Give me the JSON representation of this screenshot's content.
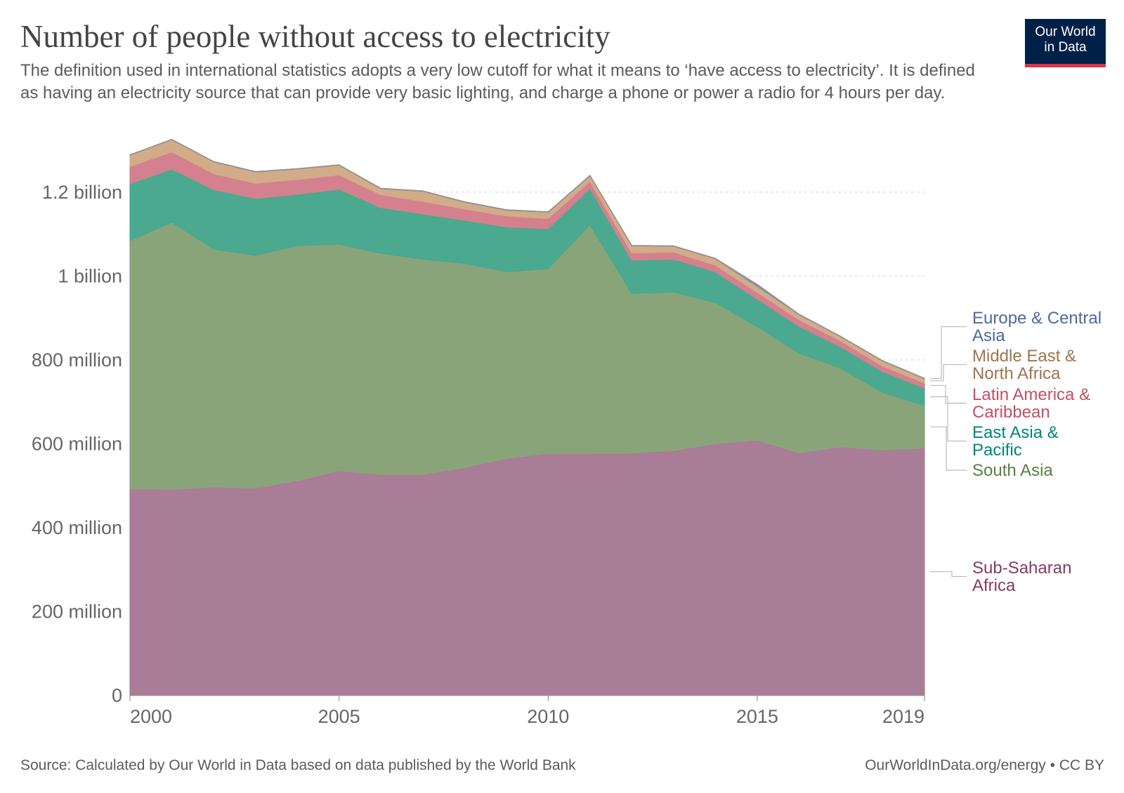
{
  "title": "Number of people without access to electricity",
  "subtitle": "The definition used in international statistics adopts a very low cutoff for what it means to ‘have access to electricity’. It is defined as having an electricity source that can provide very basic lighting, and charge a phone or power a radio for 4 hours per day.",
  "logo": {
    "line1": "Our World",
    "line2": "in Data"
  },
  "footer": {
    "source": "Source: Calculated by Our World in Data based on data published by the World Bank",
    "license": "OurWorldInData.org/energy • CC BY"
  },
  "chart_data": {
    "type": "area",
    "stacked": true,
    "x": [
      2000,
      2001,
      2002,
      2003,
      2004,
      2005,
      2006,
      2007,
      2008,
      2009,
      2010,
      2011,
      2012,
      2013,
      2014,
      2015,
      2016,
      2017,
      2018,
      2019
    ],
    "xticks": [
      "2000",
      "2005",
      "2010",
      "2015",
      "2019"
    ],
    "ylim": [
      0,
      1300000000
    ],
    "yticks": [
      {
        "value": 0,
        "label": "0"
      },
      {
        "value": 200000000,
        "label": "200 million"
      },
      {
        "value": 400000000,
        "label": "400 million"
      },
      {
        "value": 600000000,
        "label": "600 million"
      },
      {
        "value": 800000000,
        "label": "800 million"
      },
      {
        "value": 1000000000,
        "label": "1 billion"
      },
      {
        "value": 1200000000,
        "label": "1.2 billion"
      }
    ],
    "grid": true,
    "series": [
      {
        "name": "Sub-Saharan Africa",
        "fill": "#a97c98",
        "label_color": "#883960",
        "values": [
          492000000,
          491000000,
          497000000,
          494000000,
          512000000,
          536000000,
          527000000,
          527000000,
          543000000,
          565000000,
          577000000,
          577000000,
          578000000,
          584000000,
          600000000,
          609000000,
          578000000,
          593000000,
          585000000,
          590000000
        ]
      },
      {
        "name": "South Asia",
        "fill": "#8aa47a",
        "label_color": "#578145",
        "values": [
          592000000,
          637000000,
          567000000,
          555000000,
          560000000,
          540000000,
          527000000,
          513000000,
          487000000,
          445000000,
          440000000,
          545000000,
          380000000,
          378000000,
          336000000,
          270000000,
          238000000,
          187000000,
          137000000,
          101000000
        ]
      },
      {
        "name": "East Asia & Pacific",
        "fill": "#4aa98f",
        "label_color": "#00847e",
        "values": [
          136000000,
          127000000,
          142000000,
          136000000,
          123000000,
          131000000,
          109000000,
          108000000,
          103000000,
          107000000,
          96000000,
          87000000,
          80000000,
          78000000,
          74000000,
          66000000,
          64000000,
          51000000,
          50000000,
          42000000
        ]
      },
      {
        "name": "Latin America & Caribbean",
        "fill": "#d4808e",
        "label_color": "#c15065",
        "values": [
          41000000,
          41000000,
          38000000,
          36000000,
          35000000,
          34000000,
          31000000,
          30000000,
          27000000,
          26000000,
          24000000,
          17000000,
          17000000,
          17000000,
          16000000,
          16000000,
          16000000,
          14000000,
          13000000,
          12000000
        ]
      },
      {
        "name": "Middle East & North Africa",
        "fill": "#d2ac88",
        "label_color": "#a2734d",
        "values": [
          27000000,
          29000000,
          28000000,
          27000000,
          25000000,
          23000000,
          14000000,
          24000000,
          16000000,
          14000000,
          15000000,
          13000000,
          17000000,
          14000000,
          15000000,
          14000000,
          12000000,
          10000000,
          12000000,
          10000000
        ]
      },
      {
        "name": "Europe & Central Asia",
        "fill": "#7b93bf",
        "label_color": "#4c6a9c",
        "values": [
          1000000,
          1000000,
          1000000,
          1000000,
          1000000,
          1000000,
          1000000,
          1000000,
          1000000,
          1000000,
          1000000,
          1000000,
          1000000,
          1000000,
          1000000,
          5000000,
          1000000,
          1000000,
          1000000,
          1000000
        ]
      }
    ],
    "legend": [
      {
        "lines": [
          "Europe & Central",
          "Asia"
        ],
        "series": "Europe & Central Asia"
      },
      {
        "lines": [
          "Middle East &",
          "North Africa"
        ],
        "series": "Middle East & North Africa"
      },
      {
        "lines": [
          "Latin America &",
          "Caribbean"
        ],
        "series": "Latin America & Caribbean"
      },
      {
        "lines": [
          "East Asia &",
          "Pacific"
        ],
        "series": "East Asia & Pacific"
      },
      {
        "lines": [
          "South Asia"
        ],
        "series": "South Asia"
      },
      {
        "lines": [
          "Sub-Saharan",
          "Africa"
        ],
        "series": "Sub-Saharan Africa"
      }
    ],
    "legend_placement": "right"
  }
}
